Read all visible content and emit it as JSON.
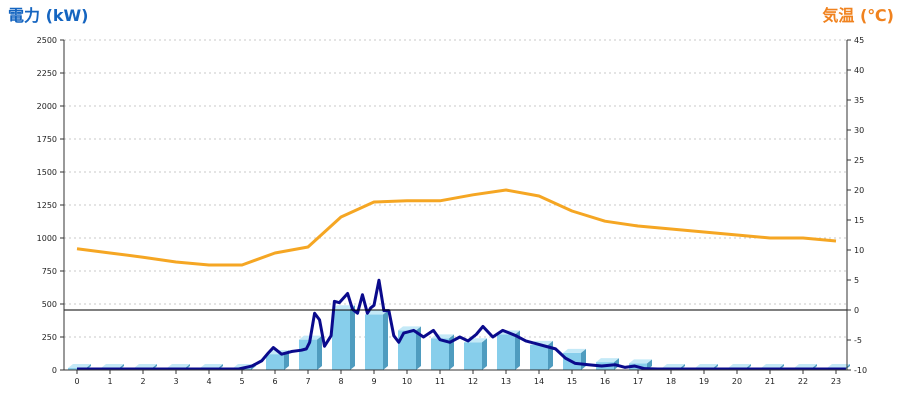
{
  "chart_data": {
    "type": "bar+line",
    "title_left": "電力 (kW)",
    "title_right": "気温 (℃)",
    "left_color": "#1565c0",
    "right_color": "#f0821e",
    "bar_color": "#87ceeb",
    "demand_line_color": "#0a0a8c",
    "temp_line_color": "#f5a623",
    "y_left": {
      "min": 0,
      "max": 2500,
      "ticks": [
        0,
        250,
        500,
        750,
        1000,
        1250,
        1500,
        1750,
        2000,
        2250,
        2500
      ]
    },
    "y_right": {
      "min": -10,
      "max": 45,
      "ticks": [
        -10,
        -5,
        0,
        5,
        10,
        15,
        20,
        25,
        30,
        35,
        40,
        45
      ]
    },
    "categories": [
      "0",
      "1",
      "2",
      "3",
      "4",
      "5",
      "6",
      "7",
      "8",
      "9",
      "10",
      "11",
      "12",
      "13",
      "14",
      "15",
      "16",
      "17",
      "18",
      "19",
      "20",
      "21",
      "22",
      "23"
    ],
    "series": [
      {
        "type": "bar",
        "axis": "left",
        "values": [
          15,
          15,
          15,
          15,
          15,
          15,
          120,
          230,
          460,
          420,
          300,
          240,
          210,
          270,
          190,
          130,
          60,
          50,
          15,
          15,
          15,
          15,
          15,
          15
        ]
      },
      {
        "type": "line",
        "axis": "left",
        "x": [
          0,
          4.9,
          5.3,
          5.6,
          5.8,
          5.95,
          6.2,
          6.5,
          6.8,
          6.95,
          7.05,
          7.2,
          7.35,
          7.5,
          7.7,
          7.8,
          7.95,
          8.2,
          8.35,
          8.5,
          8.65,
          8.8,
          8.9,
          9.0,
          9.15,
          9.3,
          9.45,
          9.6,
          9.75,
          9.9,
          10.2,
          10.5,
          10.8,
          11.0,
          11.3,
          11.6,
          11.85,
          12.1,
          12.3,
          12.6,
          12.9,
          13.1,
          13.3,
          13.6,
          13.9,
          14.2,
          14.5,
          14.8,
          15.1,
          15.5,
          15.9,
          16.3,
          16.6,
          16.9,
          17.2,
          17.6,
          18.0,
          23.3
        ],
        "values": [
          0,
          0,
          30,
          70,
          130,
          170,
          120,
          140,
          150,
          160,
          210,
          430,
          380,
          180,
          260,
          520,
          510,
          580,
          460,
          430,
          570,
          430,
          470,
          490,
          680,
          450,
          450,
          260,
          210,
          280,
          300,
          250,
          300,
          230,
          210,
          250,
          220,
          270,
          330,
          250,
          300,
          280,
          260,
          220,
          200,
          180,
          160,
          90,
          50,
          40,
          30,
          40,
          20,
          30,
          10,
          0,
          0,
          0
        ]
      },
      {
        "type": "line",
        "axis": "right",
        "values": [
          10.2,
          9.5,
          8.8,
          8.0,
          7.5,
          7.5,
          9.5,
          10.5,
          15.5,
          18.0,
          18.2,
          18.2,
          19.2,
          20.0,
          19.0,
          16.5,
          14.8,
          14.0,
          13.5,
          13.0,
          12.5,
          12.0,
          12.0,
          11.5
        ]
      }
    ]
  }
}
